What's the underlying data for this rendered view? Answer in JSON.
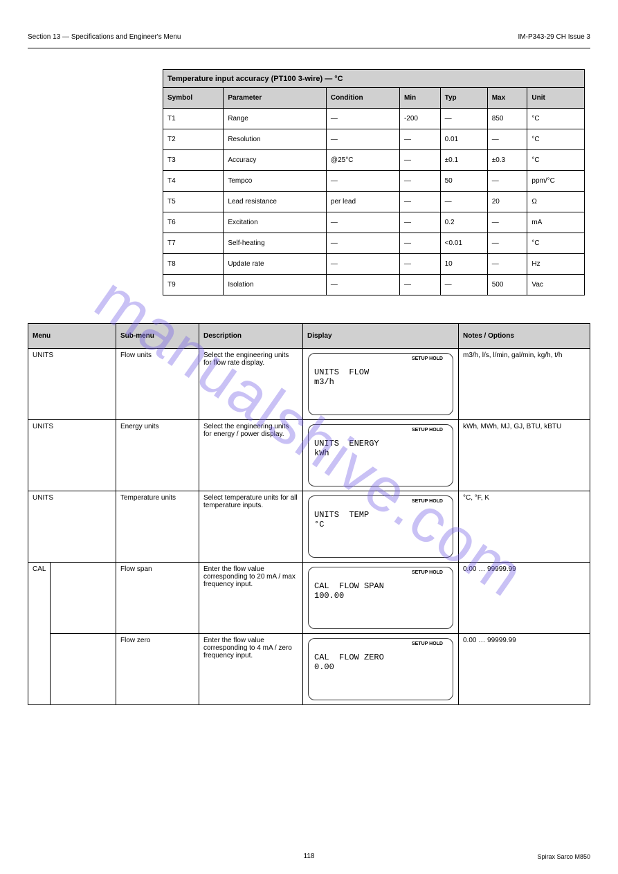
{
  "header": {
    "left": "Section 13 — Specifications and Engineer's Menu",
    "right": "IM-P343-29  CH Issue 3"
  },
  "spec_table": {
    "title": "Temperature input accuracy (PT100 3-wire) — °C",
    "columns": [
      "Symbol",
      "Parameter",
      "Condition",
      "Min",
      "Typ",
      "Max",
      "Unit"
    ],
    "rows": [
      [
        "T1",
        "Range",
        "—",
        "-200",
        "—",
        "850",
        "°C"
      ],
      [
        "T2",
        "Resolution",
        "—",
        "—",
        "0.01",
        "—",
        "°C"
      ],
      [
        "T3",
        "Accuracy",
        "@25°C",
        "—",
        "±0.1",
        "±0.3",
        "°C"
      ],
      [
        "T4",
        "Tempco",
        "—",
        "—",
        "50",
        "—",
        "ppm/°C"
      ],
      [
        "T5",
        "Lead resistance",
        "per lead",
        "—",
        "—",
        "20",
        "Ω"
      ],
      [
        "T6",
        "Excitation",
        "—",
        "—",
        "0.2",
        "—",
        "mA"
      ],
      [
        "T7",
        "Self-heating",
        "—",
        "—",
        "<0.01",
        "—",
        "°C"
      ],
      [
        "T8",
        "Update rate",
        "—",
        "—",
        "10",
        "—",
        "Hz"
      ],
      [
        "T9",
        "Isolation",
        "—",
        "—",
        "—",
        "500",
        "Vac"
      ]
    ]
  },
  "menu_header": [
    "Menu",
    "Sub-menu",
    "Description",
    "Display",
    "Notes / Options"
  ],
  "menu_rows": [
    {
      "menu": "UNITS",
      "sub": "Flow units",
      "desc": "Select the engineering units for flow rate display.",
      "lcd1": "UNITS  FLOW",
      "lcd2": "m3/h",
      "notes": "m3/h, l/s, l/min, gal/min, kg/h, t/h"
    },
    {
      "menu": "UNITS",
      "sub": "Energy units",
      "desc": "Select the engineering units for energy / power display.",
      "lcd1": "UNITS  ENERGY",
      "lcd2": "kWh",
      "notes": "kWh, MWh, MJ, GJ, BTU, kBTU"
    },
    {
      "menu": "UNITS",
      "sub": "Temperature units",
      "desc": "Select temperature units for all temperature inputs.",
      "lcd1": "UNITS  TEMP",
      "lcd2": "°C",
      "notes": "°C, °F, K"
    },
    {
      "menu": "CAL",
      "sub": "Flow span",
      "desc": "Enter the flow value corresponding to 20 mA / max frequency input.",
      "lcd1": "CAL  FLOW SPAN",
      "lcd2": "100.00",
      "notes": "0.00 … 99999.99"
    },
    {
      "menu": "CAL",
      "sub": "Flow zero",
      "desc": "Enter the flow value corresponding to 4 mA / zero frequency input.",
      "lcd1": "CAL  FLOW ZERO",
      "lcd2": "0.00",
      "notes": "0.00 … 99999.99"
    }
  ],
  "lcd_badge": "SETUP  HOLD",
  "page_number": "118",
  "footer_right": "Spirax Sarco M850"
}
